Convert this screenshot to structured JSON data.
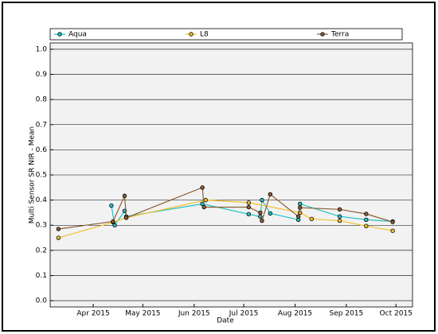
{
  "chart_data": {
    "type": "line",
    "xlabel": "Date",
    "ylabel": "Multi Sensor SR NIR - Mean",
    "xlim": [
      "2015-03-06",
      "2015-10-11"
    ],
    "xticks": [
      {
        "value": "2015-04-01",
        "label": "Apr 2015"
      },
      {
        "value": "2015-05-01",
        "label": "May 2015"
      },
      {
        "value": "2015-06-01",
        "label": "Jun 2015"
      },
      {
        "value": "2015-07-01",
        "label": "Jul 2015"
      },
      {
        "value": "2015-08-01",
        "label": "Aug 2015"
      },
      {
        "value": "2015-09-01",
        "label": "Sep 2015"
      },
      {
        "value": "2015-10-01",
        "label": "Oct 2015"
      }
    ],
    "ylim": [
      -0.025,
      1.025
    ],
    "yticks": [
      {
        "value": 0,
        "label": "0.0"
      },
      0.1,
      0.2,
      0.3,
      0.4,
      0.5,
      0.6,
      0.7,
      0.8,
      0.9,
      {
        "value": 1,
        "label": "1.0"
      }
    ],
    "grid": true,
    "legend": "top",
    "series": [
      {
        "name": "Aqua",
        "color": "#22c1c3",
        "x": [
          "2015-04-12",
          "2015-04-14",
          "2015-04-20",
          "2015-04-21",
          "2015-06-06",
          "2015-07-04",
          "2015-07-11",
          "2015-07-12",
          "2015-07-17",
          "2015-08-03",
          "2015-08-04",
          "2015-08-28",
          "2015-09-13",
          "2015-09-29"
        ],
        "values": [
          0.378,
          0.3,
          0.357,
          0.335,
          0.385,
          0.344,
          0.334,
          0.4,
          0.347,
          0.322,
          0.385,
          0.335,
          0.322,
          0.315
        ]
      },
      {
        "name": "L8",
        "color": "#f2c12e",
        "x": [
          "2015-03-11",
          "2015-04-13",
          "2015-04-21",
          "2015-06-08",
          "2015-07-04",
          "2015-08-04",
          "2015-08-11",
          "2015-08-28",
          "2015-09-13",
          "2015-09-29"
        ],
        "values": [
          0.25,
          0.312,
          0.33,
          0.4,
          0.39,
          0.35,
          0.325,
          0.318,
          0.297,
          0.278
        ]
      },
      {
        "name": "Terra",
        "color": "#8b5e34",
        "x": [
          "2015-03-11",
          "2015-04-13",
          "2015-04-20",
          "2015-04-21",
          "2015-06-06",
          "2015-06-07",
          "2015-07-04",
          "2015-07-11",
          "2015-07-12",
          "2015-07-17",
          "2015-08-03",
          "2015-08-04",
          "2015-08-28",
          "2015-09-13",
          "2015-09-29"
        ],
        "values": [
          0.285,
          0.315,
          0.417,
          0.33,
          0.45,
          0.372,
          0.372,
          0.35,
          0.318,
          0.423,
          0.335,
          0.37,
          0.363,
          0.345,
          0.313
        ]
      }
    ]
  }
}
